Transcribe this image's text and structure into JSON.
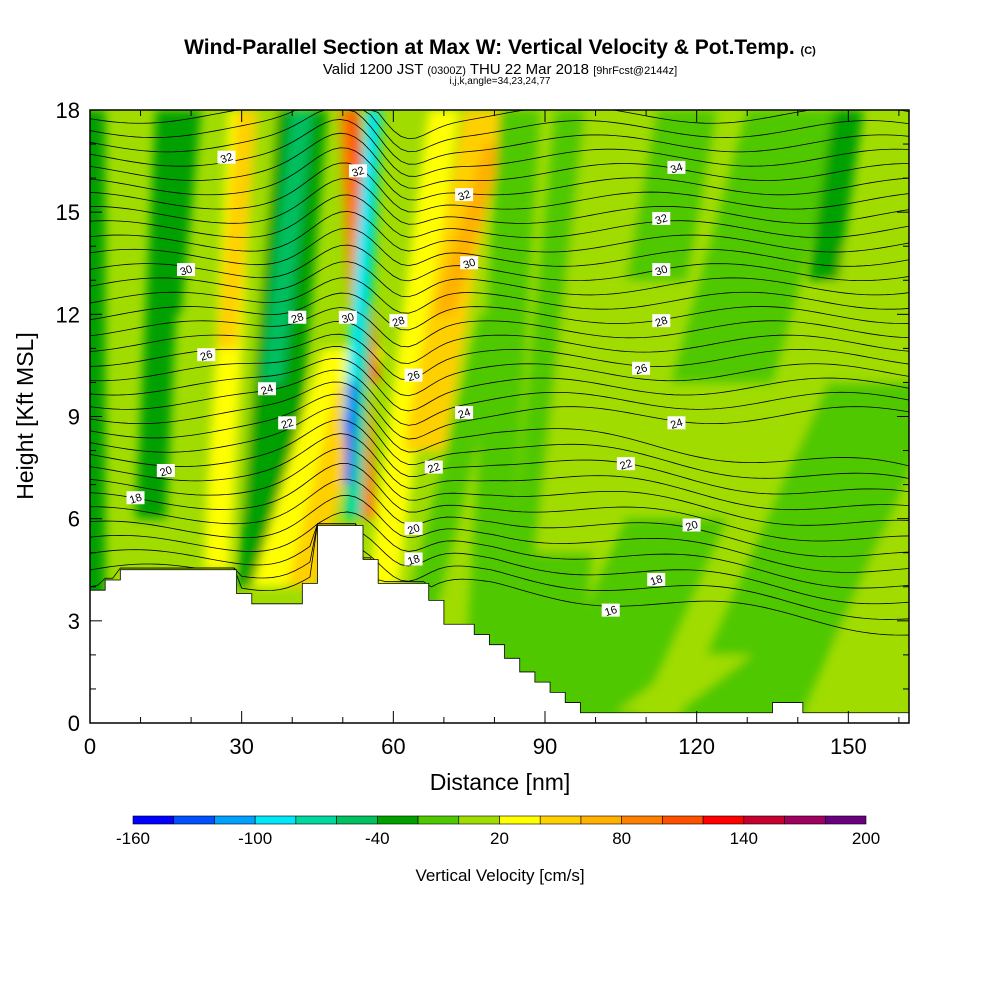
{
  "header": {
    "title": "Wind-Parallel Section at Max W: Vertical Velocity & Pot.Temp.",
    "copyright": "(C)",
    "valid_prefix": "Valid 1200 JST",
    "valid_utc": "(0300Z)",
    "valid_date": "THU 22 Mar 2018",
    "forecast": "[9hrFcst@2144z]",
    "params": "i,j,k,angle=34,23,24,77"
  },
  "chart_data": {
    "type": "heatmap",
    "xlabel": "Distance [nm]",
    "ylabel": "Height [Kft MSL]",
    "xlim": [
      0,
      162
    ],
    "ylim": [
      0,
      18
    ],
    "x_ticks": [
      0,
      30,
      60,
      90,
      120,
      150
    ],
    "y_ticks": [
      0,
      3,
      6,
      9,
      12,
      15,
      18
    ],
    "colorbar": {
      "label": "Vertical Velocity [cm/s]",
      "tick_labels": [
        "-160",
        "-100",
        "-40",
        "20",
        "80",
        "140",
        "200"
      ],
      "colors": [
        "#0000ff",
        "#0050ff",
        "#00a0ff",
        "#00e8f8",
        "#00d8a0",
        "#00c060",
        "#00a000",
        "#50c800",
        "#a0dc00",
        "#ffff00",
        "#ffd000",
        "#ffb000",
        "#ff8000",
        "#ff5000",
        "#ff0000",
        "#c80030",
        "#a00060",
        "#680080"
      ]
    },
    "terrain": [
      [
        0,
        3.9
      ],
      [
        3,
        3.9
      ],
      [
        3,
        4.2
      ],
      [
        6,
        4.2
      ],
      [
        6,
        4.5
      ],
      [
        29,
        4.5
      ],
      [
        29,
        3.8
      ],
      [
        32,
        3.8
      ],
      [
        32,
        3.5
      ],
      [
        42,
        3.5
      ],
      [
        42,
        4.1
      ],
      [
        45,
        4.1
      ],
      [
        45,
        5.8
      ],
      [
        54,
        5.8
      ],
      [
        54,
        4.8
      ],
      [
        57,
        4.8
      ],
      [
        57,
        4.1
      ],
      [
        67,
        4.1
      ],
      [
        67,
        3.6
      ],
      [
        70,
        3.6
      ],
      [
        70,
        2.9
      ],
      [
        76,
        2.9
      ],
      [
        76,
        2.6
      ],
      [
        79,
        2.6
      ],
      [
        79,
        2.3
      ],
      [
        82,
        2.3
      ],
      [
        82,
        1.9
      ],
      [
        85,
        1.9
      ],
      [
        85,
        1.5
      ],
      [
        88,
        1.5
      ],
      [
        88,
        1.2
      ],
      [
        91,
        1.2
      ],
      [
        91,
        0.9
      ],
      [
        94,
        0.9
      ],
      [
        94,
        0.6
      ],
      [
        97,
        0.6
      ],
      [
        97,
        0.3
      ],
      [
        135,
        0.3
      ],
      [
        135,
        0.6
      ],
      [
        141,
        0.6
      ],
      [
        141,
        0.3
      ],
      [
        162,
        0.3
      ]
    ],
    "theta_contour_labels": [
      {
        "text": "32",
        "x": 27,
        "y": 16.6
      },
      {
        "text": "32",
        "x": 53,
        "y": 16.2
      },
      {
        "text": "32",
        "x": 74,
        "y": 15.5
      },
      {
        "text": "34",
        "x": 116,
        "y": 16.3
      },
      {
        "text": "32",
        "x": 113,
        "y": 14.8
      },
      {
        "text": "30",
        "x": 19,
        "y": 13.3
      },
      {
        "text": "30",
        "x": 75,
        "y": 13.5
      },
      {
        "text": "30",
        "x": 113,
        "y": 13.3
      },
      {
        "text": "28",
        "x": 41,
        "y": 11.9
      },
      {
        "text": "30",
        "x": 51,
        "y": 11.9
      },
      {
        "text": "28",
        "x": 61,
        "y": 11.8
      },
      {
        "text": "28",
        "x": 113,
        "y": 11.8
      },
      {
        "text": "26",
        "x": 23,
        "y": 10.8
      },
      {
        "text": "26",
        "x": 64,
        "y": 10.2
      },
      {
        "text": "26",
        "x": 109,
        "y": 10.4
      },
      {
        "text": "24",
        "x": 35,
        "y": 9.8
      },
      {
        "text": "24",
        "x": 74,
        "y": 9.1
      },
      {
        "text": "24",
        "x": 116,
        "y": 8.8
      },
      {
        "text": "22",
        "x": 39,
        "y": 8.8
      },
      {
        "text": "22",
        "x": 68,
        "y": 7.5
      },
      {
        "text": "22",
        "x": 106,
        "y": 7.6
      },
      {
        "text": "20",
        "x": 15,
        "y": 7.4
      },
      {
        "text": "20",
        "x": 64,
        "y": 5.7
      },
      {
        "text": "20",
        "x": 119,
        "y": 5.8
      },
      {
        "text": "18",
        "x": 9,
        "y": 6.6
      },
      {
        "text": "18",
        "x": 64,
        "y": 4.8
      },
      {
        "text": "18",
        "x": 112,
        "y": 4.2
      },
      {
        "text": "16",
        "x": 103,
        "y": 3.3
      }
    ]
  }
}
